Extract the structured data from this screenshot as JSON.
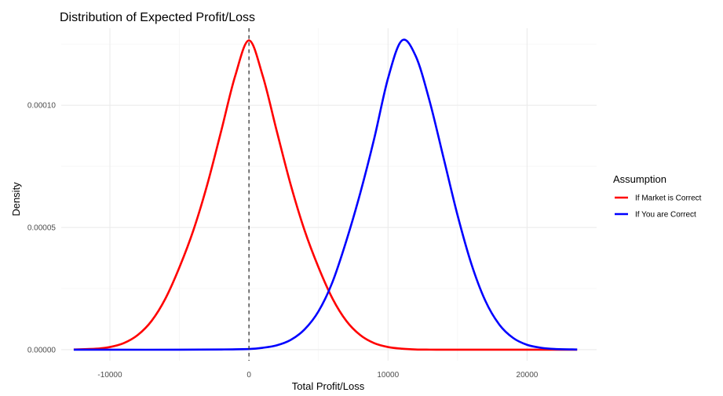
{
  "chart_data": {
    "type": "line",
    "title": "Distribution of Expected Profit/Loss",
    "xlabel": "Total Profit/Loss",
    "ylabel": "Density",
    "xlim": [
      -13500,
      25000
    ],
    "ylim": [
      -4.5e-06,
      0.0001315
    ],
    "x_ticks": [
      -10000,
      0,
      10000,
      20000
    ],
    "x_tick_labels": [
      "-10000",
      "0",
      "10000",
      "20000"
    ],
    "y_ticks": [
      0.0,
      5e-05,
      0.0001
    ],
    "y_tick_labels": [
      "0.00000",
      "0.00005",
      "0.00010"
    ],
    "x_minor_ticks": [
      -5000,
      5000,
      15000
    ],
    "y_minor_ticks": [
      2.5e-05,
      7.5e-05,
      0.000125
    ],
    "grid": true,
    "legend": {
      "title": "Assumption",
      "placement": "right"
    },
    "series": [
      {
        "name": "If Market is Correct",
        "color": "#ff0000",
        "x": [
          -12600,
          -11000,
          -10000,
          -9000,
          -8000,
          -7000,
          -6000,
          -5000,
          -4000,
          -3000,
          -2000,
          -1000,
          0,
          1000,
          2000,
          3000,
          4000,
          5000,
          6000,
          7000,
          8000,
          9000,
          10000,
          11000,
          12000,
          13000,
          14000,
          15000,
          16000,
          18000,
          20000,
          22000,
          23600
        ],
        "y": [
          1e-07,
          4e-07,
          1.1e-06,
          2.7e-06,
          6e-06,
          1.18e-05,
          2.1e-05,
          3.37e-05,
          4.88e-05,
          6.75e-05,
          8.94e-05,
          0.0001118,
          0.0001265,
          0.0001118,
          8.94e-05,
          6.75e-05,
          4.88e-05,
          3.37e-05,
          2.1e-05,
          1.18e-05,
          6e-06,
          2.7e-06,
          1.1e-06,
          4e-07,
          1e-07,
          3e-08,
          0.0,
          0.0,
          0.0,
          0.0,
          0.0,
          0.0,
          0.0
        ]
      },
      {
        "name": "If You are Correct",
        "color": "#0000ff",
        "x": [
          -12600,
          -10000,
          -5000,
          -2000,
          0,
          1000,
          2000,
          3000,
          4000,
          5000,
          6000,
          7000,
          8000,
          9000,
          10000,
          11000,
          12000,
          13000,
          14000,
          15000,
          16000,
          17000,
          18000,
          19000,
          20000,
          21000,
          22000,
          23600
        ],
        "y": [
          0.0,
          0.0,
          0.0,
          1e-07,
          3e-07,
          8e-07,
          1.8e-06,
          4e-06,
          8.3e-06,
          1.57e-05,
          2.76e-05,
          4.45e-05,
          6.4e-05,
          8.62e-05,
          0.000111,
          0.0001265,
          0.00012,
          0.0001015,
          7.83e-05,
          5.5e-05,
          3.5e-05,
          2e-05,
          1.03e-05,
          4.8e-06,
          2e-06,
          8e-07,
          3e-07,
          1e-07
        ]
      }
    ],
    "annotations": {
      "vline": {
        "x": 0,
        "color": "#333333",
        "style": "dashed"
      }
    }
  }
}
